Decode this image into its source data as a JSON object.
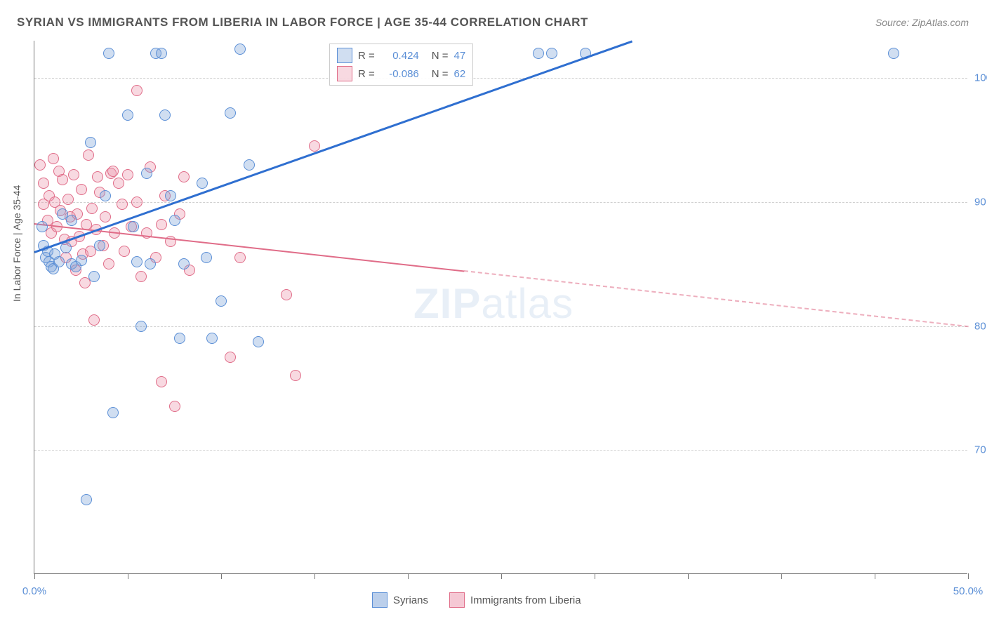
{
  "title": "SYRIAN VS IMMIGRANTS FROM LIBERIA IN LABOR FORCE | AGE 35-44 CORRELATION CHART",
  "source_label": "Source: ZipAtlas.com",
  "ylabel": "In Labor Force | Age 35-44",
  "watermark_bold": "ZIP",
  "watermark_rest": "atlas",
  "chart": {
    "type": "scatter",
    "xlim": [
      0,
      50
    ],
    "ylim": [
      60,
      103
    ],
    "x_ticks": [
      0,
      5,
      10,
      15,
      20,
      25,
      30,
      35,
      40,
      45,
      50
    ],
    "x_tick_labels": {
      "0": "0.0%",
      "50": "50.0%"
    },
    "y_ticks": [
      70,
      80,
      90,
      100
    ],
    "y_tick_labels": {
      "70": "70.0%",
      "80": "80.0%",
      "90": "90.0%",
      "100": "100.0%"
    },
    "background_color": "#ffffff",
    "grid_color": "#d0d0d0",
    "axis_color": "#777777",
    "tick_label_color": "#5b8fd6",
    "point_radius": 8,
    "point_border_width": 1.5,
    "series": [
      {
        "name": "Syrians",
        "fill": "rgba(120,160,215,0.35)",
        "stroke": "#5b8fd6",
        "r_label": "R =",
        "r_value": "0.424",
        "n_label": "N =",
        "n_value": "47",
        "trend": {
          "x1": 0,
          "y1": 86,
          "x2": 32,
          "y2": 103,
          "dash_after_x": 50,
          "color": "#2f6fd0",
          "width": 3
        },
        "points": [
          [
            0.4,
            88
          ],
          [
            0.5,
            86.5
          ],
          [
            0.6,
            85.5
          ],
          [
            0.7,
            86
          ],
          [
            0.8,
            85.2
          ],
          [
            0.9,
            84.8
          ],
          [
            1.0,
            84.6
          ],
          [
            1.1,
            85.8
          ],
          [
            1.3,
            85.2
          ],
          [
            1.5,
            89
          ],
          [
            1.7,
            86.3
          ],
          [
            2.0,
            85.0
          ],
          [
            2.0,
            88.5
          ],
          [
            2.2,
            84.8
          ],
          [
            2.5,
            85.3
          ],
          [
            3.0,
            94.8
          ],
          [
            3.2,
            84.0
          ],
          [
            3.5,
            86.5
          ],
          [
            3.8,
            90.5
          ],
          [
            4.0,
            102
          ],
          [
            4.2,
            73
          ],
          [
            5.0,
            97
          ],
          [
            5.3,
            88
          ],
          [
            5.5,
            85.2
          ],
          [
            5.7,
            80
          ],
          [
            6.0,
            92.3
          ],
          [
            6.2,
            85.0
          ],
          [
            6.5,
            102
          ],
          [
            6.8,
            102
          ],
          [
            7.0,
            97
          ],
          [
            7.3,
            90.5
          ],
          [
            7.5,
            88.5
          ],
          [
            7.8,
            79
          ],
          [
            8.0,
            85
          ],
          [
            9.0,
            91.5
          ],
          [
            9.2,
            85.5
          ],
          [
            9.5,
            79
          ],
          [
            10.0,
            82
          ],
          [
            10.5,
            97.2
          ],
          [
            11.0,
            102.3
          ],
          [
            11.5,
            93
          ],
          [
            12.0,
            78.7
          ],
          [
            2.8,
            66
          ],
          [
            27,
            102
          ],
          [
            27.7,
            102
          ],
          [
            29.5,
            102
          ],
          [
            46,
            102
          ]
        ]
      },
      {
        "name": "Immigrants from Liberia",
        "fill": "rgba(235,145,170,0.35)",
        "stroke": "#e06c88",
        "r_label": "R =",
        "r_value": "-0.086",
        "n_label": "N =",
        "n_value": "62",
        "trend": {
          "x1": 0,
          "y1": 88.3,
          "x2": 50,
          "y2": 80,
          "dash_after_x": 23,
          "color": "#e06c88",
          "width": 2
        },
        "points": [
          [
            0.3,
            93
          ],
          [
            0.5,
            91.5
          ],
          [
            0.5,
            89.8
          ],
          [
            0.7,
            88.5
          ],
          [
            0.8,
            90.5
          ],
          [
            0.9,
            87.5
          ],
          [
            1.0,
            93.5
          ],
          [
            1.1,
            90
          ],
          [
            1.2,
            88.0
          ],
          [
            1.3,
            92.5
          ],
          [
            1.4,
            89.3
          ],
          [
            1.5,
            91.8
          ],
          [
            1.6,
            87.0
          ],
          [
            1.7,
            85.5
          ],
          [
            1.8,
            90.2
          ],
          [
            1.9,
            88.8
          ],
          [
            2.0,
            86.8
          ],
          [
            2.1,
            92.2
          ],
          [
            2.2,
            84.5
          ],
          [
            2.3,
            89.0
          ],
          [
            2.4,
            87.2
          ],
          [
            2.5,
            91.0
          ],
          [
            2.6,
            85.8
          ],
          [
            2.7,
            83.5
          ],
          [
            2.8,
            88.2
          ],
          [
            2.9,
            93.8
          ],
          [
            3.0,
            86.0
          ],
          [
            3.1,
            89.5
          ],
          [
            3.2,
            80.5
          ],
          [
            3.3,
            87.8
          ],
          [
            3.4,
            92.0
          ],
          [
            3.5,
            90.8
          ],
          [
            3.7,
            86.5
          ],
          [
            3.8,
            88.8
          ],
          [
            4.0,
            85.0
          ],
          [
            4.1,
            92.3
          ],
          [
            4.2,
            92.5
          ],
          [
            4.3,
            87.5
          ],
          [
            4.5,
            91.5
          ],
          [
            4.7,
            89.8
          ],
          [
            4.8,
            86.0
          ],
          [
            5.0,
            92.2
          ],
          [
            5.2,
            88.0
          ],
          [
            5.5,
            90.0
          ],
          [
            5.5,
            99
          ],
          [
            5.7,
            84.0
          ],
          [
            6.0,
            87.5
          ],
          [
            6.2,
            92.8
          ],
          [
            6.5,
            85.5
          ],
          [
            6.8,
            88.2
          ],
          [
            6.8,
            75.5
          ],
          [
            7.0,
            90.5
          ],
          [
            7.3,
            86.8
          ],
          [
            7.5,
            73.5
          ],
          [
            7.8,
            89.0
          ],
          [
            8.0,
            92.0
          ],
          [
            8.3,
            84.5
          ],
          [
            10.5,
            77.5
          ],
          [
            11.0,
            85.5
          ],
          [
            13.5,
            82.5
          ],
          [
            14.0,
            76
          ],
          [
            15.0,
            94.5
          ]
        ]
      }
    ]
  },
  "legend_bottom": {
    "items": [
      {
        "label": "Syrians",
        "fill": "rgba(120,160,215,0.5)",
        "stroke": "#5b8fd6"
      },
      {
        "label": "Immigrants from Liberia",
        "fill": "rgba(235,145,170,0.5)",
        "stroke": "#e06c88"
      }
    ]
  }
}
